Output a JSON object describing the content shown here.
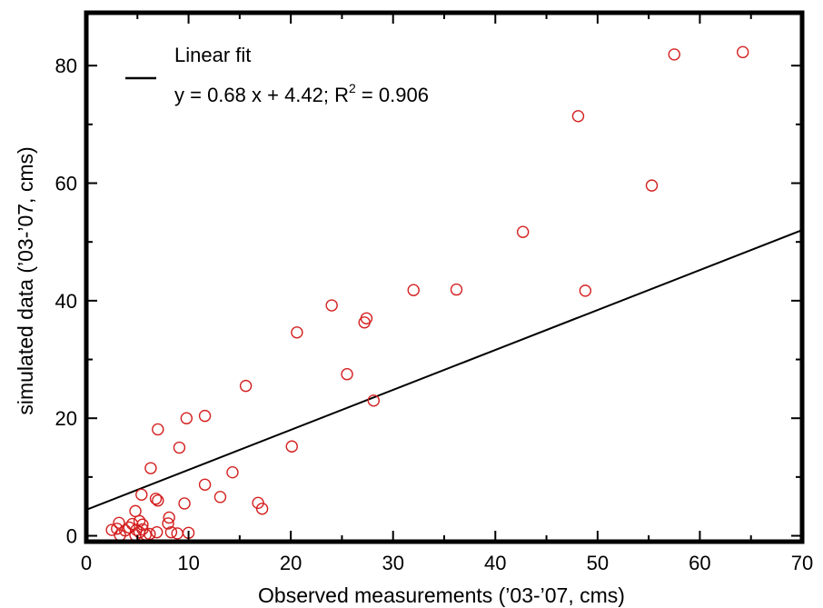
{
  "chart_data": {
    "type": "scatter",
    "xlabel": "Observed measurements (’03-’07, cms)",
    "ylabel": "simulated data (’03-’07, cms)",
    "xlim": [
      0,
      70
    ],
    "ylim": [
      -1,
      89
    ],
    "x_ticks": [
      0,
      10,
      20,
      30,
      40,
      50,
      60,
      70
    ],
    "y_ticks": [
      0,
      20,
      40,
      60,
      80
    ],
    "x_tick_labels": [
      "0",
      "10",
      "20",
      "30",
      "40",
      "50",
      "60",
      "70"
    ],
    "y_tick_labels": [
      "0",
      "20",
      "40",
      "60",
      "80"
    ],
    "grid": false,
    "legend_position": "top-left",
    "marker_color": "#d42020",
    "line_color": "#000000",
    "series": [
      {
        "type": "scatter",
        "points": [
          [
            64.2,
            82.3
          ],
          [
            57.5,
            81.9
          ],
          [
            48.1,
            71.4
          ],
          [
            55.3,
            59.6
          ],
          [
            42.7,
            51.7
          ],
          [
            48.8,
            41.7
          ],
          [
            36.2,
            41.9
          ],
          [
            32.0,
            41.8
          ],
          [
            24.0,
            39.2
          ],
          [
            27.4,
            37.0
          ],
          [
            27.2,
            36.3
          ],
          [
            20.6,
            34.6
          ],
          [
            25.5,
            27.5
          ],
          [
            28.1,
            23.0
          ],
          [
            15.6,
            25.5
          ],
          [
            11.6,
            20.4
          ],
          [
            9.8,
            20.0
          ],
          [
            7.0,
            18.1
          ],
          [
            9.1,
            15.0
          ],
          [
            20.1,
            15.2
          ],
          [
            6.3,
            11.5
          ],
          [
            14.3,
            10.8
          ],
          [
            11.6,
            8.7
          ],
          [
            13.1,
            6.6
          ],
          [
            5.4,
            7.0
          ],
          [
            6.8,
            6.3
          ],
          [
            7.0,
            6.0
          ],
          [
            9.6,
            5.5
          ],
          [
            16.8,
            5.6
          ],
          [
            17.2,
            4.6
          ],
          [
            4.8,
            4.2
          ],
          [
            3.2,
            2.2
          ],
          [
            5.2,
            2.5
          ],
          [
            4.5,
            2.0
          ],
          [
            5.5,
            1.9
          ],
          [
            8.1,
            3.1
          ],
          [
            8.0,
            2.1
          ],
          [
            2.5,
            1.0
          ],
          [
            3.0,
            1.2
          ],
          [
            3.8,
            0.9
          ],
          [
            4.2,
            1.4
          ],
          [
            4.9,
            1.0
          ],
          [
            5.2,
            0.6
          ],
          [
            5.5,
            1.1
          ],
          [
            6.9,
            0.6
          ],
          [
            8.3,
            0.6
          ],
          [
            8.9,
            0.4
          ],
          [
            10.0,
            0.5
          ],
          [
            3.3,
            0.1
          ],
          [
            4.8,
            0.1
          ],
          [
            5.8,
            0.2
          ],
          [
            6.2,
            0.3
          ]
        ]
      },
      {
        "name": "Linear fit",
        "type": "line",
        "slope": 0.68,
        "intercept": 4.42,
        "x_range": [
          0,
          70
        ]
      }
    ],
    "legend": {
      "label": "Linear fit",
      "equation_prefix": "y = 0.68 x + 4.42; R",
      "equation_sup": "2",
      "equation_suffix": " = 0.906"
    }
  }
}
